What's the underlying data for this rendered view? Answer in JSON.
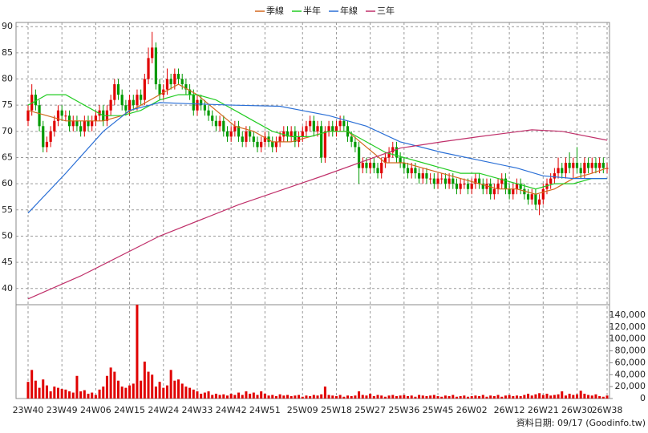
{
  "chart_data": {
    "type": "candlestick",
    "legend": "top",
    "grid": true,
    "footer": "資料日期: 09/17 (Goodinfo.tw)",
    "up_color": "#e00000",
    "down_color": "#009a00",
    "ylim": [
      36.9,
      90.8
    ],
    "yticks": [
      40,
      45,
      50,
      55,
      60,
      65,
      70,
      75,
      80,
      85,
      90
    ],
    "categories": [
      "23W40",
      null,
      null,
      null,
      null,
      null,
      null,
      null,
      null,
      "23W49",
      null,
      null,
      null,
      null,
      null,
      null,
      null,
      null,
      "24W06",
      null,
      null,
      null,
      null,
      null,
      null,
      null,
      null,
      "24W15",
      null,
      null,
      null,
      null,
      null,
      null,
      null,
      null,
      "24W24",
      null,
      null,
      null,
      null,
      null,
      null,
      null,
      null,
      "24W33",
      null,
      null,
      null,
      null,
      null,
      null,
      null,
      null,
      "24W42",
      null,
      null,
      null,
      null,
      null,
      null,
      null,
      null,
      "24W51",
      null,
      null,
      null,
      null,
      null,
      null,
      null,
      null,
      null,
      "25W09",
      null,
      null,
      null,
      null,
      null,
      null,
      null,
      null,
      "25W18",
      null,
      null,
      null,
      null,
      null,
      null,
      null,
      null,
      "25W27",
      null,
      null,
      null,
      null,
      null,
      null,
      null,
      null,
      "25W36",
      null,
      null,
      null,
      null,
      null,
      null,
      null,
      null,
      "25W45",
      null,
      null,
      null,
      null,
      null,
      null,
      null,
      null,
      "26W02",
      null,
      null,
      null,
      null,
      null,
      null,
      null,
      null,
      null,
      "26W12",
      null,
      null,
      null,
      null,
      null,
      null,
      null,
      null,
      "26W21",
      null,
      null,
      null,
      null,
      null,
      null,
      null,
      null,
      "26W30",
      null,
      null,
      null,
      null,
      null,
      null,
      null,
      "26W38"
    ],
    "open": [
      72,
      74,
      77,
      75,
      71,
      67,
      68,
      70,
      72,
      74,
      73,
      73,
      71,
      72,
      71,
      70,
      72,
      71,
      72,
      73,
      74,
      72,
      74,
      76,
      79,
      77,
      75,
      74,
      76,
      75,
      77,
      76,
      80,
      84,
      86,
      79,
      77,
      78,
      80,
      79,
      81,
      80,
      79,
      78,
      77,
      74,
      76,
      75,
      74,
      73,
      72,
      71,
      72,
      70,
      69,
      70,
      71,
      69,
      68,
      70,
      69,
      68,
      67,
      68,
      69,
      68,
      67,
      68,
      69,
      70,
      69,
      70,
      68,
      69,
      70,
      71,
      72,
      70,
      71,
      65,
      70,
      71,
      70,
      71,
      72,
      71,
      69,
      68,
      67,
      63,
      64,
      63,
      64,
      63,
      62,
      64,
      65,
      66,
      67,
      65,
      64,
      63,
      62,
      63,
      62,
      61,
      62,
      61,
      61,
      60,
      61,
      61,
      60,
      61,
      60,
      59,
      60,
      60,
      59,
      60,
      61,
      60,
      59,
      60,
      58,
      59,
      60,
      61,
      59,
      58,
      59,
      60,
      59,
      58,
      57,
      58,
      56,
      57,
      59,
      60,
      61,
      62,
      63,
      62,
      64,
      63,
      64,
      63,
      62,
      64,
      63,
      64,
      63,
      64,
      63
    ],
    "high": [
      75,
      79,
      78,
      76,
      72,
      69,
      71,
      73,
      75,
      75,
      74,
      74,
      73,
      73,
      72,
      73,
      73,
      73,
      74,
      75,
      75,
      75,
      77,
      80,
      80,
      78,
      76,
      77,
      77,
      78,
      78,
      81,
      86,
      89,
      87,
      80,
      79,
      82,
      81,
      82,
      82,
      81,
      80,
      79,
      78,
      77,
      77,
      76,
      75,
      74,
      73,
      73,
      73,
      71,
      71,
      72,
      72,
      70,
      71,
      71,
      70,
      69,
      69,
      70,
      70,
      69,
      69,
      70,
      71,
      71,
      71,
      71,
      70,
      71,
      72,
      73,
      73,
      72,
      72,
      71,
      72,
      72,
      72,
      73,
      73,
      72,
      70,
      69,
      68,
      65,
      65,
      65,
      65,
      64,
      65,
      66,
      67,
      68,
      68,
      66,
      65,
      64,
      64,
      64,
      63,
      63,
      63,
      62,
      62,
      62,
      62,
      62,
      62,
      62,
      61,
      61,
      61,
      61,
      61,
      62,
      62,
      61,
      61,
      61,
      60,
      61,
      62,
      62,
      60,
      60,
      61,
      61,
      60,
      59,
      59,
      59,
      58,
      60,
      61,
      62,
      63,
      65,
      64,
      65,
      66,
      65,
      67,
      64,
      65,
      65,
      65,
      65,
      65,
      65,
      64
    ],
    "low": [
      71,
      73,
      74,
      70,
      66,
      66,
      67,
      69,
      71,
      72,
      72,
      70,
      70,
      70,
      69,
      69,
      70,
      70,
      71,
      72,
      71,
      71,
      73,
      75,
      76,
      74,
      73,
      73,
      74,
      74,
      75,
      75,
      79,
      83,
      78,
      76,
      76,
      77,
      78,
      78,
      79,
      78,
      77,
      76,
      73,
      73,
      74,
      73,
      72,
      71,
      70,
      70,
      69,
      68,
      68,
      69,
      68,
      67,
      67,
      68,
      67,
      66,
      66,
      67,
      67,
      66,
      66,
      67,
      68,
      68,
      68,
      67,
      67,
      68,
      69,
      70,
      69,
      69,
      64,
      64,
      69,
      69,
      69,
      70,
      70,
      68,
      67,
      66,
      60,
      62,
      62,
      62,
      62,
      61,
      61,
      63,
      64,
      65,
      64,
      63,
      62,
      61,
      61,
      61,
      60,
      60,
      60,
      60,
      59,
      59,
      60,
      59,
      59,
      59,
      58,
      58,
      59,
      58,
      58,
      59,
      59,
      58,
      58,
      57,
      57,
      58,
      59,
      58,
      57,
      57,
      58,
      58,
      57,
      56,
      56,
      55,
      54,
      56,
      58,
      59,
      60,
      61,
      61,
      61,
      62,
      61,
      62,
      61,
      61,
      62,
      62,
      62,
      62,
      62,
      62
    ],
    "close": [
      74,
      77,
      75,
      71,
      67,
      68,
      70,
      72,
      74,
      73,
      73,
      71,
      72,
      71,
      70,
      72,
      71,
      72,
      73,
      74,
      72,
      74,
      76,
      79,
      77,
      75,
      74,
      76,
      75,
      77,
      76,
      80,
      84,
      86,
      79,
      77,
      78,
      80,
      79,
      81,
      80,
      79,
      78,
      77,
      74,
      76,
      75,
      74,
      73,
      72,
      71,
      72,
      70,
      69,
      70,
      71,
      69,
      68,
      70,
      69,
      68,
      67,
      68,
      69,
      68,
      67,
      68,
      69,
      70,
      69,
      70,
      68,
      69,
      70,
      71,
      72,
      70,
      71,
      65,
      70,
      71,
      70,
      71,
      72,
      71,
      69,
      68,
      67,
      63,
      64,
      63,
      64,
      63,
      62,
      64,
      65,
      66,
      67,
      65,
      64,
      63,
      62,
      63,
      62,
      61,
      62,
      61,
      61,
      60,
      61,
      61,
      60,
      61,
      60,
      59,
      60,
      60,
      59,
      60,
      61,
      60,
      59,
      60,
      58,
      59,
      60,
      61,
      59,
      58,
      59,
      60,
      59,
      58,
      57,
      58,
      56,
      57,
      59,
      60,
      61,
      62,
      63,
      62,
      64,
      63,
      64,
      63,
      62,
      64,
      63,
      64,
      63,
      64,
      63,
      63
    ],
    "ma_series": [
      {
        "name": "季線",
        "color": "#d2691e",
        "x": [
          0,
          5,
          10,
          15,
          20,
          25,
          30,
          35,
          40,
          45,
          50,
          55,
          60,
          65,
          70,
          75,
          80,
          85,
          90,
          95,
          100,
          105,
          110,
          115,
          120,
          125,
          130,
          135,
          140,
          145,
          150,
          154
        ],
        "values": [
          74,
          73,
          72,
          72,
          72,
          73,
          75,
          77,
          79,
          77,
          74,
          71,
          70,
          68,
          68,
          69,
          70,
          70,
          67,
          64,
          64,
          63,
          62,
          61,
          60,
          59,
          59,
          58,
          59,
          61,
          62,
          63
        ]
      },
      {
        "name": "半年",
        "color": "#22cc22",
        "x": [
          0,
          5,
          10,
          15,
          20,
          25,
          30,
          35,
          40,
          45,
          50,
          55,
          60,
          65,
          70,
          75,
          80,
          85,
          90,
          95,
          100,
          105,
          110,
          115,
          120,
          125,
          130,
          135,
          140,
          145,
          150,
          154
        ],
        "values": [
          75,
          77,
          77,
          75,
          73,
          73,
          74,
          76,
          77,
          77,
          76,
          74,
          72,
          70,
          69,
          69,
          70,
          70,
          68,
          66,
          65,
          64,
          63,
          62,
          62,
          61,
          60,
          59,
          60,
          60,
          61,
          61
        ]
      },
      {
        "name": "年線",
        "color": "#2a6fd6",
        "x": [
          0,
          10,
          20,
          27,
          35,
          42,
          55,
          67,
          80,
          90,
          99,
          110,
          120,
          130,
          137,
          145,
          154
        ],
        "values": [
          54.4,
          62,
          70,
          74,
          75.5,
          75.3,
          75,
          74.8,
          73,
          71,
          68,
          66,
          64.5,
          63,
          61.5,
          61,
          61
        ]
      },
      {
        "name": "三年",
        "color": "#c0306a",
        "x": [
          0,
          14,
          35,
          56,
          78,
          99,
          110,
          120,
          134,
          142,
          154
        ],
        "values": [
          38,
          42.4,
          50,
          56,
          61.4,
          66.8,
          68,
          69,
          70.3,
          70,
          68.3
        ]
      }
    ],
    "volume": {
      "color": "#e00000",
      "ylim": [
        0,
        157500
      ],
      "yticks": [
        0,
        {
          "value": 20000,
          "label": "20,000"
        },
        {
          "value": 40000,
          "label": "40,000"
        },
        {
          "value": 60000,
          "label": "60,000"
        },
        {
          "value": 80000,
          "label": "80,000"
        },
        {
          "value": 100000,
          "label": "100,000"
        },
        {
          "value": 120000,
          "label": "120,000"
        },
        {
          "value": 140000,
          "label": "140,000"
        }
      ],
      "values": [
        28000,
        48000,
        30000,
        18000,
        32000,
        22000,
        12000,
        20000,
        18000,
        16000,
        15000,
        12000,
        10000,
        38000,
        12000,
        14000,
        8000,
        10000,
        6000,
        15000,
        20000,
        38000,
        52000,
        45000,
        30000,
        20000,
        18000,
        22000,
        25000,
        160000,
        30000,
        62000,
        45000,
        40000,
        20000,
        28000,
        18000,
        22000,
        48000,
        30000,
        32000,
        25000,
        20000,
        18000,
        15000,
        12000,
        8000,
        10000,
        12000,
        6000,
        8000,
        6000,
        7000,
        5000,
        8000,
        6000,
        10000,
        6000,
        12000,
        8000,
        10000,
        6000,
        12000,
        8000,
        5000,
        6000,
        4000,
        7000,
        5000,
        6000,
        4000,
        5000,
        6000,
        3000,
        5000,
        4000,
        6000,
        5000,
        7000,
        20000,
        6000,
        5000,
        4000,
        6000,
        3000,
        5000,
        4000,
        5000,
        12000,
        6000,
        5000,
        8000,
        4000,
        6000,
        5000,
        3000,
        5000,
        6000,
        4000,
        5000,
        6000,
        4000,
        5000,
        3000,
        6000,
        5000,
        4000,
        5000,
        6000,
        4000,
        3000,
        5000,
        4000,
        6000,
        3000,
        4000,
        5000,
        3000,
        4000,
        5000,
        4000,
        6000,
        3000,
        5000,
        4000,
        6000,
        3000,
        5000,
        6000,
        4000,
        5000,
        4000,
        6000,
        8000,
        5000,
        7000,
        9000,
        6000,
        8000,
        5000,
        6000,
        7000,
        12000,
        5000,
        8000,
        6000,
        7000,
        13000,
        8000,
        6000,
        5000,
        7000,
        4000,
        3000,
        5000
      ]
    }
  }
}
